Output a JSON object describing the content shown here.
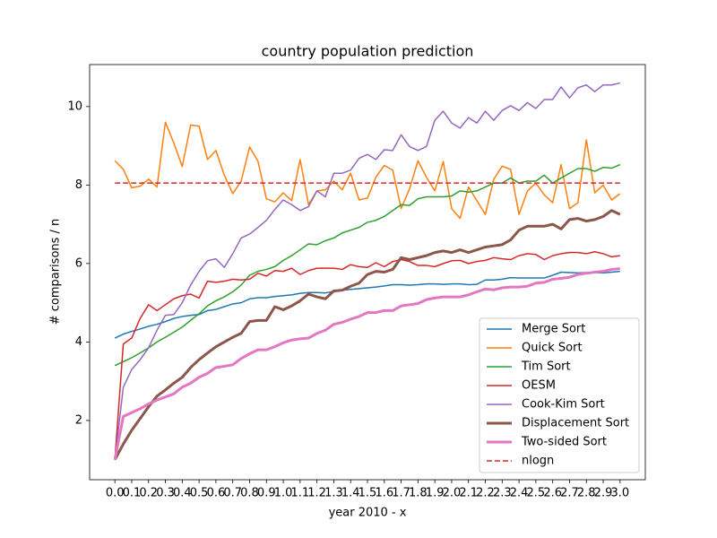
{
  "chart_data": {
    "type": "line",
    "title": "country population prediction",
    "x_label": "year 2010 - x",
    "y_label": "# comparisons / n",
    "x": [
      0,
      0.05,
      0.1,
      0.15,
      0.2,
      0.25,
      0.3,
      0.35,
      0.4,
      0.45,
      0.5,
      0.55,
      0.6,
      0.65,
      0.7,
      0.75,
      0.8,
      0.85,
      0.9,
      0.95,
      1.0,
      1.05,
      1.1,
      1.15,
      1.2,
      1.25,
      1.3,
      1.35,
      1.4,
      1.45,
      1.5,
      1.55,
      1.6,
      1.65,
      1.7,
      1.75,
      1.8,
      1.85,
      1.9,
      1.95,
      2.0,
      2.05,
      2.1,
      2.15,
      2.2,
      2.25,
      2.3,
      2.35,
      2.4,
      2.45,
      2.5,
      2.55,
      2.6,
      2.65,
      2.7,
      2.75,
      2.8,
      2.85,
      2.9,
      2.95,
      3.0
    ],
    "series": [
      {
        "name": "Merge Sort",
        "color": "#1f77b4",
        "width": 1.5,
        "values": [
          4.1,
          4.2,
          4.27,
          4.33,
          4.4,
          4.45,
          4.52,
          4.6,
          4.65,
          4.68,
          4.7,
          4.8,
          4.83,
          4.9,
          4.97,
          5.0,
          5.1,
          5.13,
          5.13,
          5.16,
          5.18,
          5.2,
          5.24,
          5.26,
          5.26,
          5.25,
          5.29,
          5.32,
          5.34,
          5.36,
          5.38,
          5.4,
          5.43,
          5.46,
          5.46,
          5.45,
          5.46,
          5.48,
          5.48,
          5.47,
          5.48,
          5.48,
          5.46,
          5.47,
          5.58,
          5.58,
          5.6,
          5.64,
          5.63,
          5.63,
          5.63,
          5.63,
          5.7,
          5.78,
          5.77,
          5.76,
          5.77,
          5.77,
          5.76,
          5.78,
          5.8
        ]
      },
      {
        "name": "Quick Sort",
        "color": "#ff7f0e",
        "width": 1.5,
        "values": [
          8.62,
          8.4,
          7.93,
          7.97,
          8.15,
          7.95,
          9.6,
          9.07,
          8.47,
          9.53,
          9.5,
          8.65,
          8.88,
          8.25,
          7.78,
          8.1,
          8.97,
          8.6,
          7.65,
          7.57,
          7.8,
          7.6,
          8.65,
          7.5,
          7.85,
          7.88,
          8.1,
          7.88,
          8.3,
          7.62,
          7.67,
          8.2,
          8.5,
          8.38,
          7.4,
          7.9,
          8.62,
          8.2,
          7.85,
          8.6,
          7.4,
          7.15,
          7.95,
          7.6,
          7.25,
          8.15,
          8.48,
          8.4,
          7.25,
          7.85,
          8.05,
          7.75,
          7.55,
          8.52,
          7.4,
          7.55,
          9.15,
          7.8,
          8.0,
          7.62,
          7.78
        ]
      },
      {
        "name": "Tim Sort",
        "color": "#2ca02c",
        "width": 1.5,
        "values": [
          3.4,
          3.5,
          3.6,
          3.72,
          3.85,
          4.0,
          4.12,
          4.25,
          4.38,
          4.55,
          4.72,
          4.92,
          5.05,
          5.15,
          5.28,
          5.45,
          5.7,
          5.8,
          5.85,
          5.92,
          6.08,
          6.2,
          6.35,
          6.5,
          6.48,
          6.58,
          6.65,
          6.78,
          6.85,
          6.92,
          7.05,
          7.1,
          7.2,
          7.35,
          7.5,
          7.48,
          7.65,
          7.7,
          7.7,
          7.7,
          7.72,
          7.85,
          7.82,
          7.85,
          7.95,
          8.05,
          8.05,
          8.18,
          8.05,
          8.1,
          8.1,
          8.25,
          8.05,
          8.18,
          8.3,
          8.42,
          8.42,
          8.35,
          8.45,
          8.43,
          8.52
        ]
      },
      {
        "name": "OESM",
        "color": "#d62728",
        "width": 1.5,
        "values": [
          1.0,
          3.95,
          4.1,
          4.6,
          4.95,
          4.8,
          4.95,
          5.1,
          5.18,
          5.22,
          5.12,
          5.55,
          5.52,
          5.55,
          5.6,
          5.58,
          5.6,
          5.75,
          5.68,
          5.82,
          5.8,
          5.88,
          5.72,
          5.82,
          5.88,
          5.88,
          5.88,
          5.85,
          5.97,
          5.92,
          5.9,
          6.02,
          5.92,
          6.05,
          6.1,
          6.05,
          5.95,
          5.95,
          5.92,
          6.0,
          6.07,
          6.08,
          6.0,
          6.05,
          6.08,
          6.15,
          6.12,
          6.1,
          6.2,
          6.25,
          6.23,
          6.1,
          6.2,
          6.25,
          6.28,
          6.28,
          6.25,
          6.3,
          6.25,
          6.17,
          6.2
        ]
      },
      {
        "name": "Cook-Kim Sort",
        "color": "#9467bd",
        "width": 1.5,
        "values": [
          1.0,
          2.85,
          3.3,
          3.55,
          3.85,
          4.3,
          4.68,
          4.7,
          5.0,
          5.45,
          5.8,
          6.07,
          6.12,
          5.9,
          6.25,
          6.65,
          6.75,
          6.92,
          7.1,
          7.38,
          7.62,
          7.5,
          7.35,
          7.45,
          7.85,
          7.7,
          8.3,
          8.3,
          8.38,
          8.68,
          8.78,
          8.65,
          8.9,
          8.88,
          9.28,
          8.98,
          8.88,
          8.98,
          9.65,
          9.88,
          9.58,
          9.45,
          9.72,
          9.58,
          9.88,
          9.65,
          9.9,
          10.02,
          9.9,
          10.1,
          9.95,
          10.18,
          10.18,
          10.5,
          10.22,
          10.48,
          10.55,
          10.38,
          10.55,
          10.55,
          10.6
        ]
      },
      {
        "name": "Displacement Sort",
        "color": "#8c564b",
        "width": 3,
        "values": [
          1.0,
          1.4,
          1.75,
          2.05,
          2.35,
          2.62,
          2.78,
          2.95,
          3.1,
          3.35,
          3.55,
          3.72,
          3.88,
          4.0,
          4.12,
          4.22,
          4.52,
          4.55,
          4.55,
          4.9,
          4.82,
          4.92,
          5.05,
          5.22,
          5.15,
          5.1,
          5.3,
          5.32,
          5.42,
          5.5,
          5.72,
          5.8,
          5.78,
          5.85,
          6.15,
          6.1,
          6.15,
          6.2,
          6.28,
          6.32,
          6.28,
          6.35,
          6.28,
          6.35,
          6.42,
          6.45,
          6.48,
          6.6,
          6.85,
          6.95,
          6.95,
          6.95,
          7.0,
          6.88,
          7.12,
          7.15,
          7.08,
          7.12,
          7.2,
          7.35,
          7.25
        ]
      },
      {
        "name": "Two-sided Sort",
        "color": "#e377c2",
        "width": 3,
        "values": [
          1.0,
          2.1,
          2.2,
          2.3,
          2.42,
          2.52,
          2.6,
          2.68,
          2.85,
          2.95,
          3.1,
          3.2,
          3.35,
          3.38,
          3.42,
          3.58,
          3.7,
          3.8,
          3.8,
          3.88,
          3.98,
          4.05,
          4.08,
          4.1,
          4.22,
          4.3,
          4.45,
          4.5,
          4.58,
          4.65,
          4.75,
          4.75,
          4.8,
          4.8,
          4.92,
          4.95,
          4.98,
          5.08,
          5.12,
          5.15,
          5.15,
          5.15,
          5.2,
          5.28,
          5.35,
          5.33,
          5.38,
          5.4,
          5.4,
          5.42,
          5.5,
          5.52,
          5.6,
          5.62,
          5.65,
          5.72,
          5.75,
          5.78,
          5.8,
          5.85,
          5.87
        ]
      },
      {
        "name": "nlogn",
        "color": "#d62728",
        "width": 1.5,
        "dashed": true,
        "values": [
          8.05,
          8.05,
          8.05,
          8.05,
          8.05,
          8.05,
          8.05,
          8.05,
          8.05,
          8.05,
          8.05,
          8.05,
          8.05,
          8.05,
          8.05,
          8.05,
          8.05,
          8.05,
          8.05,
          8.05,
          8.05,
          8.05,
          8.05,
          8.05,
          8.05,
          8.05,
          8.05,
          8.05,
          8.05,
          8.05,
          8.05,
          8.05,
          8.05,
          8.05,
          8.05,
          8.05,
          8.05,
          8.05,
          8.05,
          8.05,
          8.05,
          8.05,
          8.05,
          8.05,
          8.05,
          8.05,
          8.05,
          8.05,
          8.05,
          8.05,
          8.05,
          8.05,
          8.05,
          8.05,
          8.05,
          8.05,
          8.05,
          8.05,
          8.05,
          8.05,
          8.05
        ]
      }
    ],
    "xlim": [
      -0.15,
      3.15
    ],
    "ylim": [
      0.49,
      11.07
    ],
    "xticks": [
      {
        "value": 0,
        "label": "0.0"
      },
      {
        "value": 0.1,
        "label": "0.1"
      },
      {
        "value": 0.2,
        "label": "0.2"
      },
      {
        "value": 0.3,
        "label": "0.3"
      },
      {
        "value": 0.4,
        "label": "0.4"
      },
      {
        "value": 0.5,
        "label": "0.5"
      },
      {
        "value": 0.6,
        "label": "0.6"
      },
      {
        "value": 0.7,
        "label": "0.7"
      },
      {
        "value": 0.8,
        "label": "0.8"
      },
      {
        "value": 0.9,
        "label": "0.9"
      },
      {
        "value": 1.0,
        "label": "1.0"
      },
      {
        "value": 1.1,
        "label": "1.1"
      },
      {
        "value": 1.2,
        "label": "1.2"
      },
      {
        "value": 1.3,
        "label": "1.3"
      },
      {
        "value": 1.4,
        "label": "1.4"
      },
      {
        "value": 1.5,
        "label": "1.5"
      },
      {
        "value": 1.6,
        "label": "1.6"
      },
      {
        "value": 1.7,
        "label": "1.7"
      },
      {
        "value": 1.8,
        "label": "1.8"
      },
      {
        "value": 1.9,
        "label": "1.9"
      },
      {
        "value": 2.0,
        "label": "2.0"
      },
      {
        "value": 2.1,
        "label": "2.1"
      },
      {
        "value": 2.2,
        "label": "2.2"
      },
      {
        "value": 2.3,
        "label": "2.3"
      },
      {
        "value": 2.4,
        "label": "2.4"
      },
      {
        "value": 2.5,
        "label": "2.5"
      },
      {
        "value": 2.6,
        "label": "2.6"
      },
      {
        "value": 2.7,
        "label": "2.7"
      },
      {
        "value": 2.8,
        "label": "2.8"
      },
      {
        "value": 2.9,
        "label": "2.9"
      },
      {
        "value": 3.0,
        "label": "3.0"
      }
    ],
    "yticks": [
      2,
      4,
      6,
      8,
      10
    ],
    "grid": false,
    "legend": "lower right"
  }
}
